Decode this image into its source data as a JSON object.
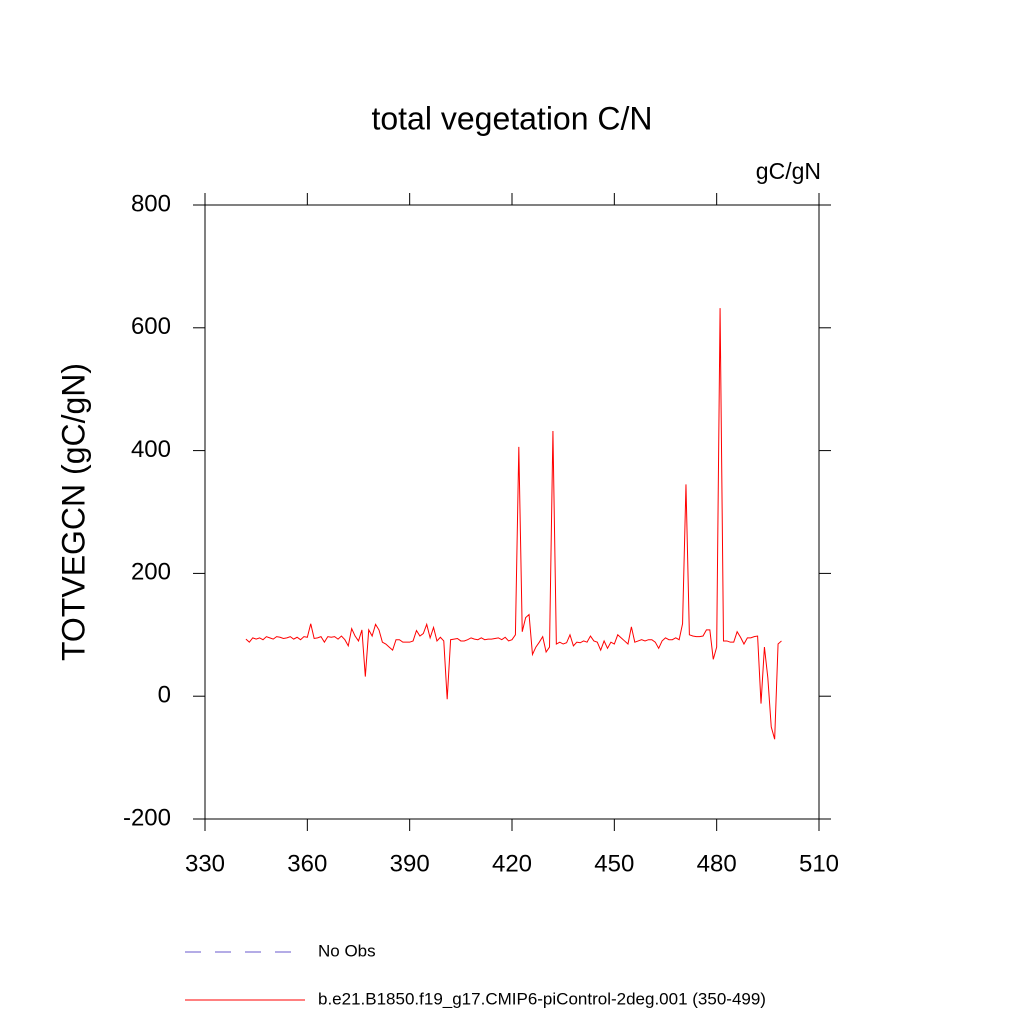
{
  "chart_data": {
    "type": "line",
    "title": "total vegetation C/N",
    "units": "gC/gN",
    "ylabel": "TOTVEGCN  (gC/gN)",
    "xlim": [
      330,
      510
    ],
    "xticks": [
      330,
      360,
      390,
      420,
      450,
      480,
      510
    ],
    "ylim": [
      -200,
      800
    ],
    "yticks": [
      -200,
      0,
      200,
      400,
      600,
      800
    ],
    "x": [
      342,
      343,
      344,
      345,
      346,
      347,
      348,
      349,
      350,
      351,
      352,
      353,
      354,
      355,
      356,
      357,
      358,
      359,
      360,
      361,
      362,
      363,
      364,
      365,
      366,
      367,
      368,
      369,
      370,
      371,
      372,
      373,
      374,
      375,
      376,
      377,
      378,
      379,
      380,
      381,
      382,
      383,
      384,
      385,
      386,
      387,
      388,
      389,
      390,
      391,
      392,
      393,
      394,
      395,
      396,
      397,
      398,
      399,
      400,
      401,
      402,
      403,
      404,
      405,
      406,
      407,
      408,
      409,
      410,
      411,
      412,
      413,
      414,
      415,
      416,
      417,
      418,
      419,
      420,
      421,
      422,
      423,
      424,
      425,
      426,
      427,
      428,
      429,
      430,
      431,
      432,
      433,
      434,
      435,
      436,
      437,
      438,
      439,
      440,
      441,
      442,
      443,
      444,
      445,
      446,
      447,
      448,
      449,
      450,
      451,
      452,
      453,
      454,
      455,
      456,
      457,
      458,
      459,
      460,
      461,
      462,
      463,
      464,
      465,
      466,
      467,
      468,
      469,
      470,
      471,
      472,
      473,
      474,
      475,
      476,
      477,
      478,
      479,
      480,
      481,
      482,
      483,
      484,
      485,
      486,
      487,
      488,
      489,
      490,
      491,
      492,
      493,
      494,
      495,
      496,
      497,
      498,
      499
    ],
    "series": [
      {
        "name": "No Obs",
        "color": "#6a5acd",
        "dash": true,
        "values": [
          null,
          null,
          null,
          null,
          null,
          null,
          null,
          null,
          null,
          null,
          null,
          null,
          null,
          null,
          null,
          null,
          null,
          null,
          null,
          null,
          null,
          null,
          null,
          null,
          null,
          null,
          null,
          null,
          null,
          null,
          null,
          null,
          null,
          null,
          null,
          null,
          null,
          null,
          null,
          null,
          null,
          null,
          null,
          null,
          null,
          null,
          null,
          null,
          null,
          null,
          null,
          null,
          null,
          null,
          null,
          null,
          null,
          null,
          null,
          null,
          null,
          null,
          null,
          null,
          null,
          null,
          null,
          null,
          null,
          null,
          null,
          null,
          null,
          null,
          null,
          null,
          null,
          null,
          null,
          null,
          null,
          null,
          null,
          null,
          null,
          null,
          null,
          null,
          null,
          null,
          null,
          null,
          null,
          null,
          null,
          null,
          null,
          null,
          null,
          null,
          null,
          null,
          null,
          null,
          null,
          null,
          null,
          null,
          null,
          null,
          null,
          null,
          null,
          null,
          null,
          null,
          null,
          null,
          null,
          null,
          null,
          null,
          null,
          null,
          null,
          null,
          null,
          null,
          null,
          null,
          null,
          null,
          null,
          null,
          null,
          null,
          null,
          null,
          null,
          null,
          null,
          null,
          null,
          null,
          null,
          null,
          null,
          null,
          null,
          null,
          null,
          null,
          null,
          null,
          null,
          null,
          null,
          null
        ]
      },
      {
        "name": "b.e21.B1850.f19_g17.CMIP6-piControl-2deg.001 (350-499)",
        "color": "#ff0000",
        "dash": false,
        "values": [
          93,
          88,
          95,
          93,
          95,
          92,
          97,
          95,
          93,
          97,
          96,
          94,
          95,
          97,
          93,
          96,
          92,
          97,
          96,
          118,
          94,
          95,
          97,
          88,
          97,
          96,
          97,
          93,
          98,
          92,
          82,
          110,
          98,
          90,
          108,
          32,
          108,
          98,
          117,
          108,
          88,
          85,
          80,
          75,
          92,
          92,
          88,
          88,
          88,
          90,
          107,
          98,
          102,
          117,
          95,
          112,
          90,
          96,
          90,
          -5,
          92,
          93,
          94,
          90,
          90,
          92,
          95,
          93,
          92,
          95,
          92,
          93,
          93,
          94,
          95,
          92,
          96,
          90,
          92,
          100,
          406,
          105,
          128,
          133,
          68,
          80,
          88,
          97,
          72,
          80,
          432,
          85,
          88,
          85,
          87,
          100,
          82,
          88,
          87,
          90,
          88,
          98,
          90,
          88,
          75,
          90,
          78,
          88,
          85,
          100,
          95,
          90,
          85,
          113,
          88,
          90,
          92,
          90,
          92,
          92,
          88,
          78,
          90,
          95,
          92,
          92,
          95,
          92,
          118,
          345,
          100,
          98,
          97,
          97,
          98,
          108,
          108,
          60,
          80,
          632,
          90,
          90,
          88,
          88,
          105,
          96,
          85,
          95,
          95,
          97,
          98,
          -12,
          80,
          30,
          -50,
          -70,
          85,
          90
        ]
      }
    ]
  }
}
